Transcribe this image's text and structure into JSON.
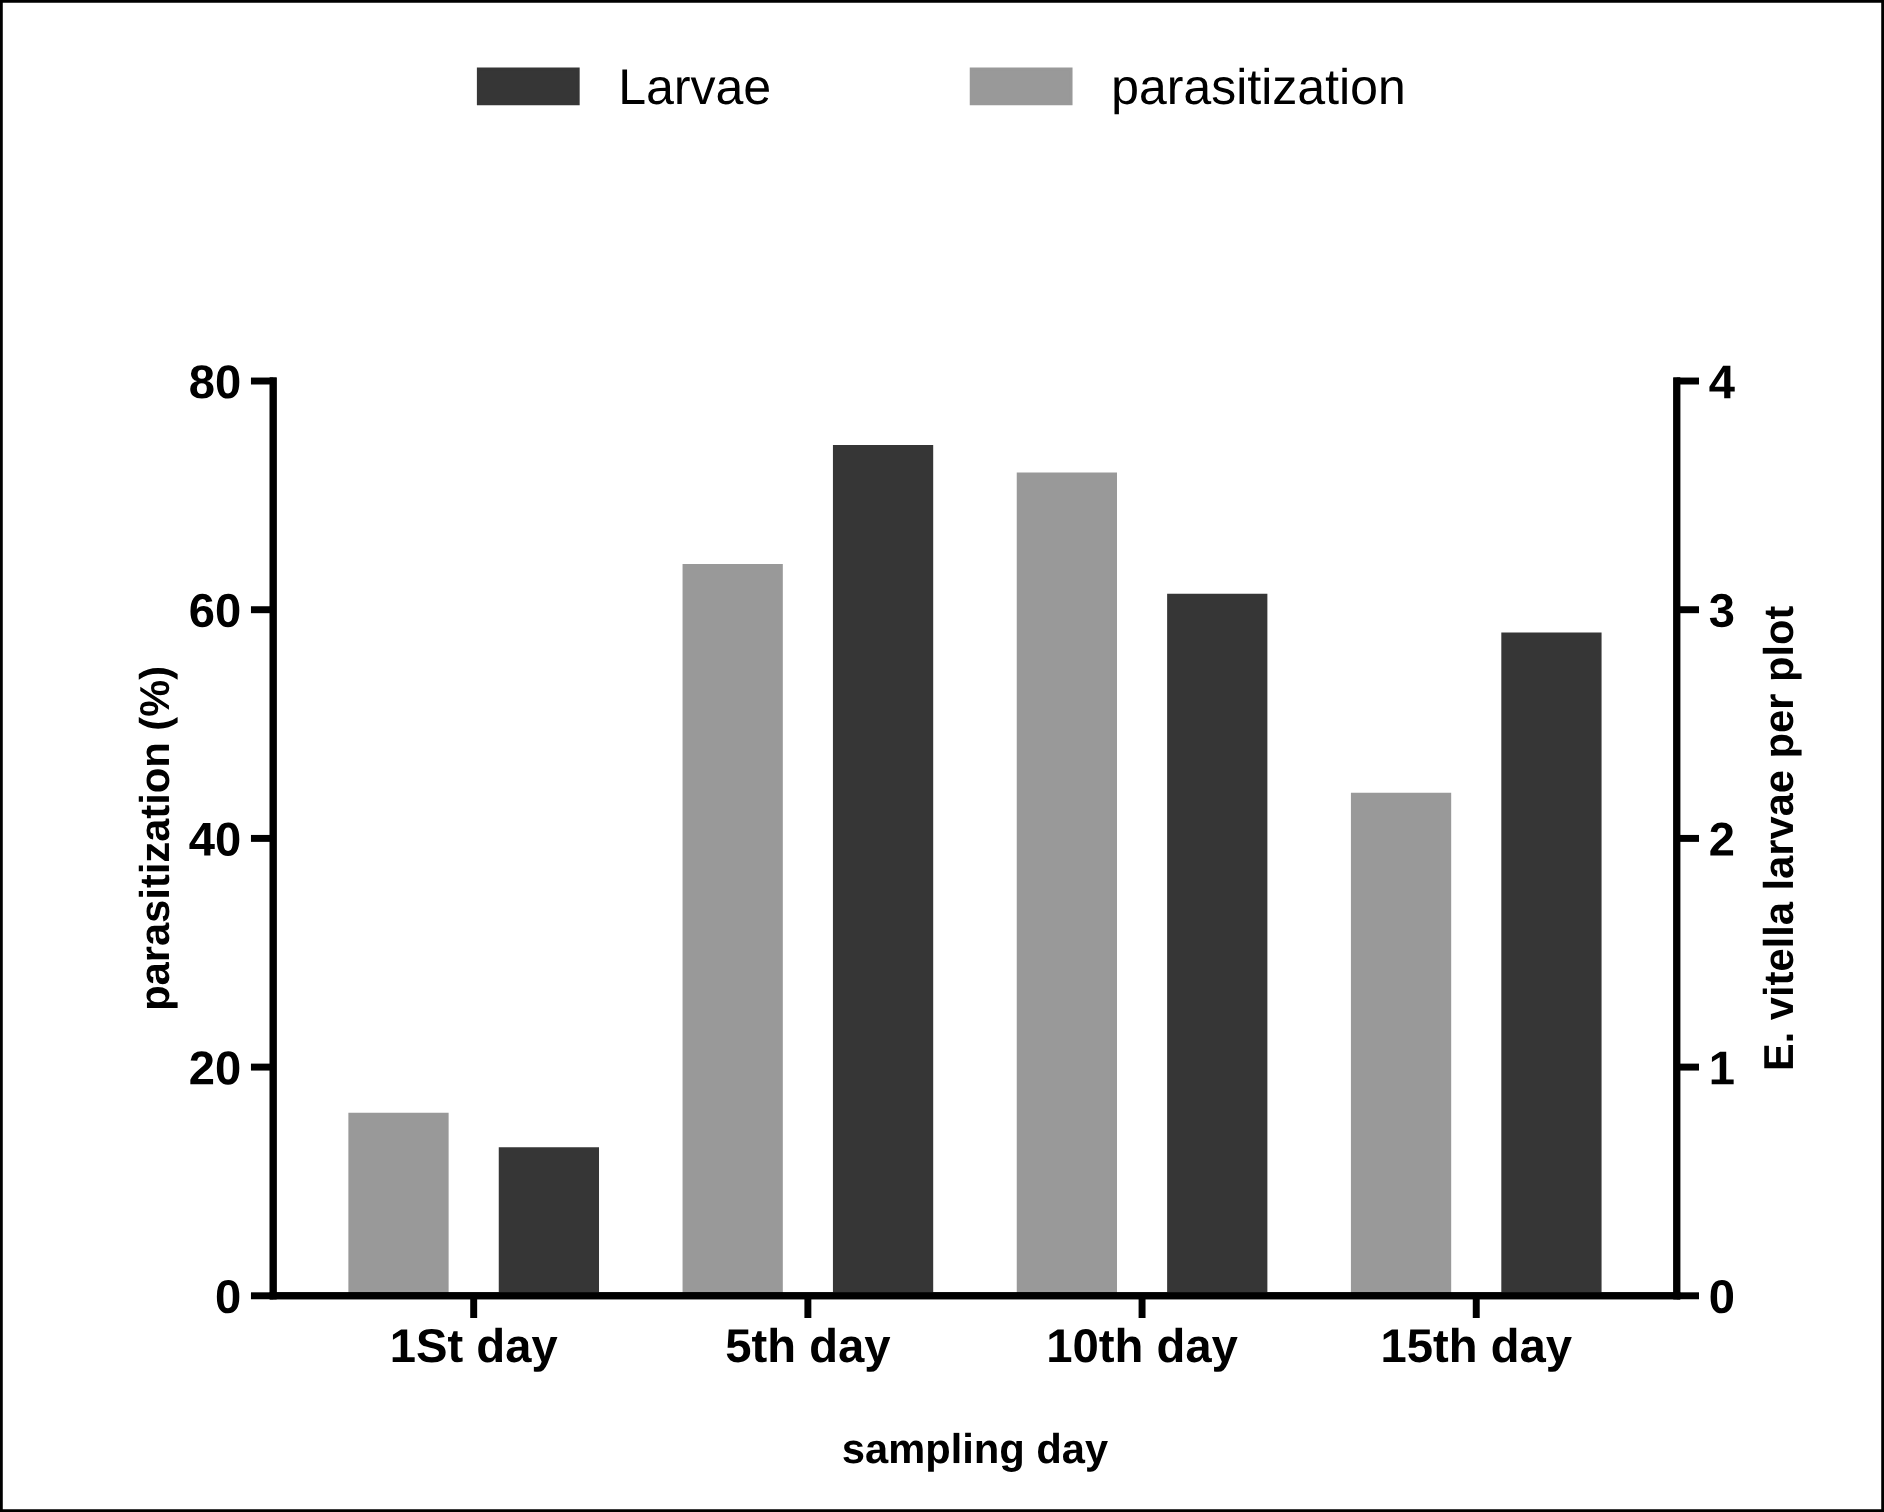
{
  "chart_data": {
    "type": "bar",
    "xlabel": "sampling day",
    "ylabel": "parasitization (%)",
    "y2label": "E. vitella larvae per plot",
    "categories": [
      "1St day",
      "5th day",
      "10th day",
      "15th day"
    ],
    "series": [
      {
        "name": "parasitization",
        "color": "#999999",
        "values": [
          16,
          64,
          72,
          44
        ]
      },
      {
        "name": "Larvae",
        "color": "#363636",
        "axis": "y2",
        "values": [
          0.65,
          3.72,
          3.07,
          2.9
        ]
      }
    ],
    "ylim": [
      0,
      80
    ],
    "yticks": [
      0,
      20,
      40,
      60,
      80
    ],
    "y2lim": [
      0,
      4
    ],
    "y2ticks": [
      0,
      1,
      2,
      3,
      4
    ],
    "legend": "top",
    "grid": false
  }
}
